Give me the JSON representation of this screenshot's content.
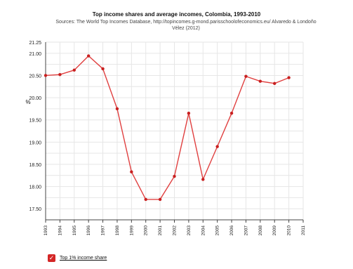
{
  "chart_data": {
    "type": "line",
    "title": "Top income shares and average incomes, Colombia, 1993-2010",
    "subtitle": "Sources: The World Top Incomes Database, http://topincomes.g-mond.parisschoolofeconomics.eu/ Alvaredo & Londoño Vélez (2012)",
    "xlabel": "",
    "ylabel": "%",
    "x": [
      1993,
      1994,
      1995,
      1996,
      1997,
      1998,
      1999,
      2000,
      2001,
      2002,
      2003,
      2004,
      2005,
      2006,
      2007,
      2008,
      2009,
      2010
    ],
    "xticks": [
      "1993",
      "1994",
      "1995",
      "1996",
      "1997",
      "1998",
      "1999",
      "2000",
      "2001",
      "2002",
      "2003",
      "2004",
      "2005",
      "2006",
      "2007",
      "2008",
      "2009",
      "2010",
      "2011"
    ],
    "xlim": [
      1993,
      2011
    ],
    "ylim": [
      17.25,
      21.25
    ],
    "yticks": [
      17.5,
      17.75,
      18,
      18.25,
      18.5,
      18.75,
      19,
      19.25,
      19.5,
      19.75,
      20,
      20.25,
      20.5,
      20.75,
      21,
      21.25
    ],
    "ytick_labels": [
      "17.50",
      "",
      "18.00",
      "",
      "18.50",
      "",
      "19.00",
      "",
      "19.50",
      "",
      "20.00",
      "",
      "20.50",
      "",
      "21.00",
      "21.25"
    ],
    "grid": true,
    "series": [
      {
        "name": "Top 1% income share",
        "color": "#e04040",
        "values": [
          20.5,
          20.52,
          20.62,
          20.94,
          20.65,
          19.75,
          18.33,
          17.71,
          17.71,
          18.23,
          19.65,
          18.16,
          18.9,
          19.65,
          20.48,
          20.37,
          20.32,
          20.45
        ]
      }
    ],
    "legend": "bottom-left"
  },
  "legend": {
    "check_glyph": "✓",
    "label": "Top 1% income share"
  }
}
